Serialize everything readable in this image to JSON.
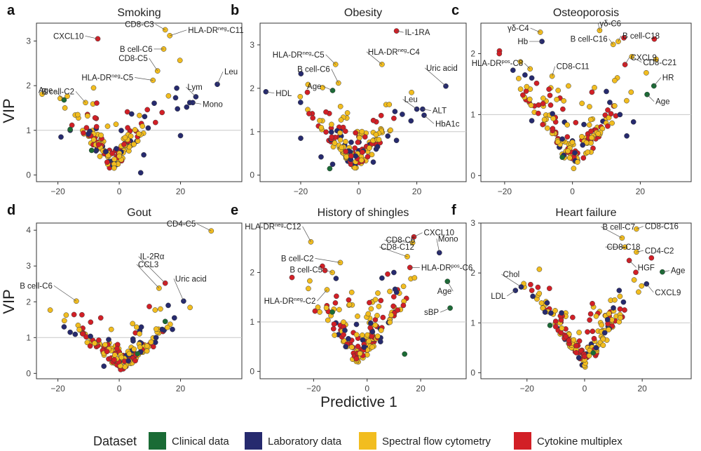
{
  "figure": {
    "ylabel": "VIP",
    "xlabel": "Predictive 1",
    "legend": {
      "title": "Dataset",
      "items": [
        {
          "key": "clinical",
          "label": "Clinical data",
          "color": "#1a6b35"
        },
        {
          "key": "lab",
          "label": "Laboratory data",
          "color": "#262a6e"
        },
        {
          "key": "flow",
          "label": "Spectral flow cytometry",
          "color": "#f2bd1f"
        },
        {
          "key": "cyto",
          "label": "Cytokine multiplex",
          "color": "#d21f26"
        }
      ]
    }
  },
  "chart_data": [
    {
      "letter": "a",
      "title": "Smoking",
      "type": "scatter",
      "xlim": [
        -27,
        40
      ],
      "ylim": [
        -0.15,
        3.4
      ],
      "xticks": [
        -20,
        0,
        20
      ],
      "yticks": [
        0,
        1,
        2,
        3
      ],
      "threshold": 1,
      "labeled": [
        {
          "x": -7,
          "y": 3.05,
          "label": "CXCL10",
          "dataset": "cyto"
        },
        {
          "x": 15,
          "y": 3.25,
          "label": "CD8-C3",
          "dataset": "flow"
        },
        {
          "x": 16.5,
          "y": 3.12,
          "label": "HLA-DR^neg-C11",
          "dataset": "flow"
        },
        {
          "x": 14.5,
          "y": 2.82,
          "label": "B cell-C6",
          "dataset": "flow"
        },
        {
          "x": 12.5,
          "y": 2.33,
          "label": "CD8-C5",
          "dataset": "flow"
        },
        {
          "x": 11,
          "y": 2.12,
          "label": "HLA-DR^neg-C5",
          "dataset": "flow"
        },
        {
          "x": -11,
          "y": 1.62,
          "label": "B cell-C2",
          "dataset": "flow"
        },
        {
          "x": -18,
          "y": 1.68,
          "label": "Age",
          "dataset": "clinical"
        },
        {
          "x": 32,
          "y": 2.03,
          "label": "Leu",
          "dataset": "lab"
        },
        {
          "x": 25,
          "y": 1.75,
          "label": "Lym",
          "dataset": "lab"
        },
        {
          "x": 24,
          "y": 1.62,
          "label": "Mono",
          "dataset": "lab"
        }
      ],
      "unlabeled_lab": [
        [
          -19,
          0.85
        ],
        [
          -16,
          1.0
        ],
        [
          19,
          1.48
        ],
        [
          22,
          1.52
        ],
        [
          23,
          1.62
        ],
        [
          20,
          0.88
        ],
        [
          8,
          0.45
        ],
        [
          7,
          0.05
        ]
      ],
      "unlabeled_clinical": [
        [
          -16,
          1.02
        ],
        [
          -9,
          0.55
        ]
      ],
      "cloud": {
        "cx": -2,
        "sx": 5,
        "y0": 0.05,
        "k": 0.075,
        "n": 150,
        "seed": 11
      }
    },
    {
      "letter": "b",
      "title": "Obesity",
      "type": "scatter",
      "xlim": [
        -34,
        37
      ],
      "ylim": [
        -0.15,
        3.5
      ],
      "xticks": [
        -20,
        0,
        20
      ],
      "yticks": [
        0,
        1,
        2,
        3
      ],
      "threshold": 1,
      "labeled": [
        {
          "x": 13,
          "y": 3.32,
          "label": "IL-1RA",
          "dataset": "cyto"
        },
        {
          "x": -8,
          "y": 2.55,
          "label": "HLA-DR^neg-C5",
          "dataset": "flow"
        },
        {
          "x": -7,
          "y": 2.12,
          "label": "B cell-C6",
          "dataset": "flow"
        },
        {
          "x": 8,
          "y": 2.55,
          "label": "HLA-DR^neg-C4",
          "dataset": "flow"
        },
        {
          "x": -9,
          "y": 1.95,
          "label": "Age",
          "dataset": "clinical"
        },
        {
          "x": -32,
          "y": 1.92,
          "label": "HDL",
          "dataset": "lab"
        },
        {
          "x": 30,
          "y": 2.05,
          "label": "Uric acid",
          "dataset": "lab"
        },
        {
          "x": 20,
          "y": 1.52,
          "label": "Leu",
          "dataset": "lab"
        },
        {
          "x": 22,
          "y": 1.52,
          "label": "ALT",
          "dataset": "lab"
        },
        {
          "x": 22.5,
          "y": 1.38,
          "label": "HbA1c",
          "dataset": "lab"
        }
      ],
      "unlabeled_lab": [
        [
          -20,
          0.85
        ],
        [
          -13,
          0.42
        ],
        [
          -9,
          0.25
        ],
        [
          15,
          1.4
        ],
        [
          18,
          1.25
        ],
        [
          10,
          0.9
        ],
        [
          13,
          0.8
        ],
        [
          6,
          0.6
        ],
        [
          5,
          0.3
        ]
      ],
      "unlabeled_clinical": [
        [
          -10,
          0.15
        ]
      ],
      "cloud": {
        "cx": -1,
        "sx": 5,
        "y0": 0.05,
        "k": 0.075,
        "n": 155,
        "seed": 23
      }
    },
    {
      "letter": "c",
      "title": "Osteoporosis",
      "type": "scatter",
      "xlim": [
        -27,
        35
      ],
      "ylim": [
        -0.1,
        2.5
      ],
      "xticks": [
        -20,
        0,
        20
      ],
      "yticks": [
        0,
        1,
        2
      ],
      "threshold": 1,
      "labeled": [
        {
          "x": -9.5,
          "y": 2.35,
          "label": "γδ-C4",
          "dataset": "flow"
        },
        {
          "x": -9,
          "y": 2.2,
          "label": "Hb",
          "dataset": "lab"
        },
        {
          "x": 8,
          "y": 2.38,
          "label": "γδ-C6",
          "dataset": "flow"
        },
        {
          "x": 12,
          "y": 2.15,
          "label": "B cell-C16",
          "dataset": "flow"
        },
        {
          "x": 13.5,
          "y": 2.2,
          "label": "B cell-C18",
          "dataset": "flow"
        },
        {
          "x": -12.5,
          "y": 1.75,
          "label": "HLA-DR^pos-C8",
          "dataset": "flow"
        },
        {
          "x": -6,
          "y": 1.63,
          "label": "CD8-C11",
          "dataset": "flow"
        },
        {
          "x": 17.5,
          "y": 1.95,
          "label": "CD8-C21",
          "dataset": "flow"
        },
        {
          "x": 15.5,
          "y": 1.82,
          "label": "CXCL9",
          "dataset": "cyto"
        },
        {
          "x": 24,
          "y": 1.47,
          "label": "HR",
          "dataset": "clinical"
        },
        {
          "x": 22,
          "y": 1.33,
          "label": "Age",
          "dataset": "clinical"
        }
      ],
      "unlabeled_lab": [
        [
          -14,
          1.65
        ],
        [
          -12,
          1.6
        ],
        [
          10,
          1.38
        ],
        [
          11,
          1.2
        ],
        [
          14,
          1.0
        ],
        [
          18,
          0.88
        ],
        [
          16,
          0.65
        ],
        [
          3,
          0.5
        ],
        [
          -3,
          0.6
        ],
        [
          -12,
          0.9
        ]
      ],
      "unlabeled_clinical": [
        [
          -3,
          0.3
        ]
      ],
      "cloud": {
        "cx": 1,
        "sx": 6,
        "y0": 0.04,
        "k": 0.07,
        "n": 160,
        "seed": 37
      }
    },
    {
      "letter": "d",
      "title": "Gout",
      "type": "scatter",
      "xlim": [
        -27,
        40
      ],
      "ylim": [
        -0.15,
        4.2
      ],
      "xticks": [
        -20,
        0,
        20
      ],
      "yticks": [
        0,
        1,
        2,
        3,
        4
      ],
      "threshold": 1,
      "labeled": [
        {
          "x": 30,
          "y": 3.98,
          "label": "CD4-C5",
          "dataset": "flow"
        },
        {
          "x": 15,
          "y": 2.52,
          "label": "IL-2Rα",
          "dataset": "cyto"
        },
        {
          "x": 13,
          "y": 2.38,
          "label": "CCL3",
          "dataset": "flow"
        },
        {
          "x": 21,
          "y": 2.02,
          "label": "Uric acid",
          "dataset": "lab"
        },
        {
          "x": -14,
          "y": 2.02,
          "label": "B cell-C6",
          "dataset": "flow"
        }
      ],
      "unlabeled_lab": [
        [
          -18,
          1.3
        ],
        [
          -16,
          1.15
        ],
        [
          16,
          1.9
        ],
        [
          18,
          1.55
        ],
        [
          12,
          1.0
        ],
        [
          7,
          0.6
        ],
        [
          3,
          0.35
        ],
        [
          -5,
          0.2
        ]
      ],
      "unlabeled_clinical": [
        [
          15,
          1.45
        ],
        [
          6,
          0.55
        ]
      ],
      "cloud": {
        "cx": 1,
        "sx": 5.5,
        "y0": 0.05,
        "k": 0.065,
        "n": 165,
        "seed": 51
      }
    },
    {
      "letter": "e",
      "title": "History of shingles",
      "type": "scatter",
      "xlim": [
        -40,
        37
      ],
      "ylim": [
        -0.15,
        3.0
      ],
      "xticks": [
        -20,
        0,
        20
      ],
      "yticks": [
        0,
        1,
        2
      ],
      "threshold": 1,
      "labeled": [
        {
          "x": 17.5,
          "y": 2.72,
          "label": "CXCL10",
          "dataset": "cyto"
        },
        {
          "x": 17,
          "y": 2.6,
          "label": "CD8-C6",
          "dataset": "flow"
        },
        {
          "x": 27,
          "y": 2.4,
          "label": "Mono",
          "dataset": "lab"
        },
        {
          "x": 15,
          "y": 2.32,
          "label": "CD8-C12",
          "dataset": "flow"
        },
        {
          "x": 16,
          "y": 2.1,
          "label": "HLA-DR^pos-C6",
          "dataset": "cyto"
        },
        {
          "x": -21,
          "y": 2.62,
          "label": "HLA-DR^neg-C12",
          "dataset": "flow"
        },
        {
          "x": -10,
          "y": 2.2,
          "label": "B cell-C2",
          "dataset": "flow"
        },
        {
          "x": -13,
          "y": 2.0,
          "label": "B cell-C5",
          "dataset": "flow"
        },
        {
          "x": -15,
          "y": 1.65,
          "label": "HLA-DR^neg-C2",
          "dataset": "flow"
        },
        {
          "x": 30,
          "y": 1.82,
          "label": "Age",
          "dataset": "clinical"
        },
        {
          "x": 31,
          "y": 1.28,
          "label": "sBP",
          "dataset": "clinical"
        }
      ],
      "unlabeled_lab": [
        [
          10,
          2.0
        ],
        [
          11,
          1.6
        ],
        [
          -4,
          0.95
        ],
        [
          2,
          0.8
        ],
        [
          5,
          0.6
        ],
        [
          -8,
          0.5
        ]
      ],
      "unlabeled_clinical": [
        [
          -13,
          1.2
        ],
        [
          14,
          0.35
        ]
      ],
      "cloud": {
        "cx": -3,
        "sx": 6,
        "y0": 0.05,
        "k": 0.07,
        "n": 170,
        "seed": 67
      }
    },
    {
      "letter": "f",
      "title": "Heart failure",
      "type": "scatter",
      "xlim": [
        -36,
        37
      ],
      "ylim": [
        -0.12,
        3.0
      ],
      "xticks": [
        -20,
        0,
        20
      ],
      "yticks": [
        0,
        1,
        2,
        3
      ],
      "threshold": 1,
      "labeled": [
        {
          "x": 18,
          "y": 2.88,
          "label": "CD8-C16",
          "dataset": "flow"
        },
        {
          "x": 13,
          "y": 2.7,
          "label": "B cell-C7",
          "dataset": "flow"
        },
        {
          "x": 14,
          "y": 2.52,
          "label": "CD8-C18",
          "dataset": "flow"
        },
        {
          "x": 18,
          "y": 2.42,
          "label": "CD4-C2",
          "dataset": "flow"
        },
        {
          "x": 15.5,
          "y": 2.25,
          "label": "HGF",
          "dataset": "cyto"
        },
        {
          "x": 27,
          "y": 2.02,
          "label": "Age",
          "dataset": "clinical"
        },
        {
          "x": 21.5,
          "y": 1.78,
          "label": "CXCL9",
          "dataset": "lab"
        },
        {
          "x": -22,
          "y": 1.72,
          "label": "Chol",
          "dataset": "lab"
        },
        {
          "x": -24,
          "y": 1.65,
          "label": "LDL",
          "dataset": "lab"
        }
      ],
      "unlabeled_lab": [
        [
          -13,
          1.4
        ],
        [
          -8,
          1.2
        ],
        [
          12,
          1.65
        ],
        [
          10,
          1.3
        ],
        [
          7,
          0.8
        ],
        [
          4,
          0.5
        ],
        [
          -2,
          0.3
        ]
      ],
      "unlabeled_clinical": [
        [
          -12,
          0.95
        ],
        [
          3,
          0.4
        ]
      ],
      "cloud": {
        "cx": 0,
        "sx": 6,
        "y0": 0.05,
        "k": 0.075,
        "n": 165,
        "seed": 83
      }
    }
  ]
}
